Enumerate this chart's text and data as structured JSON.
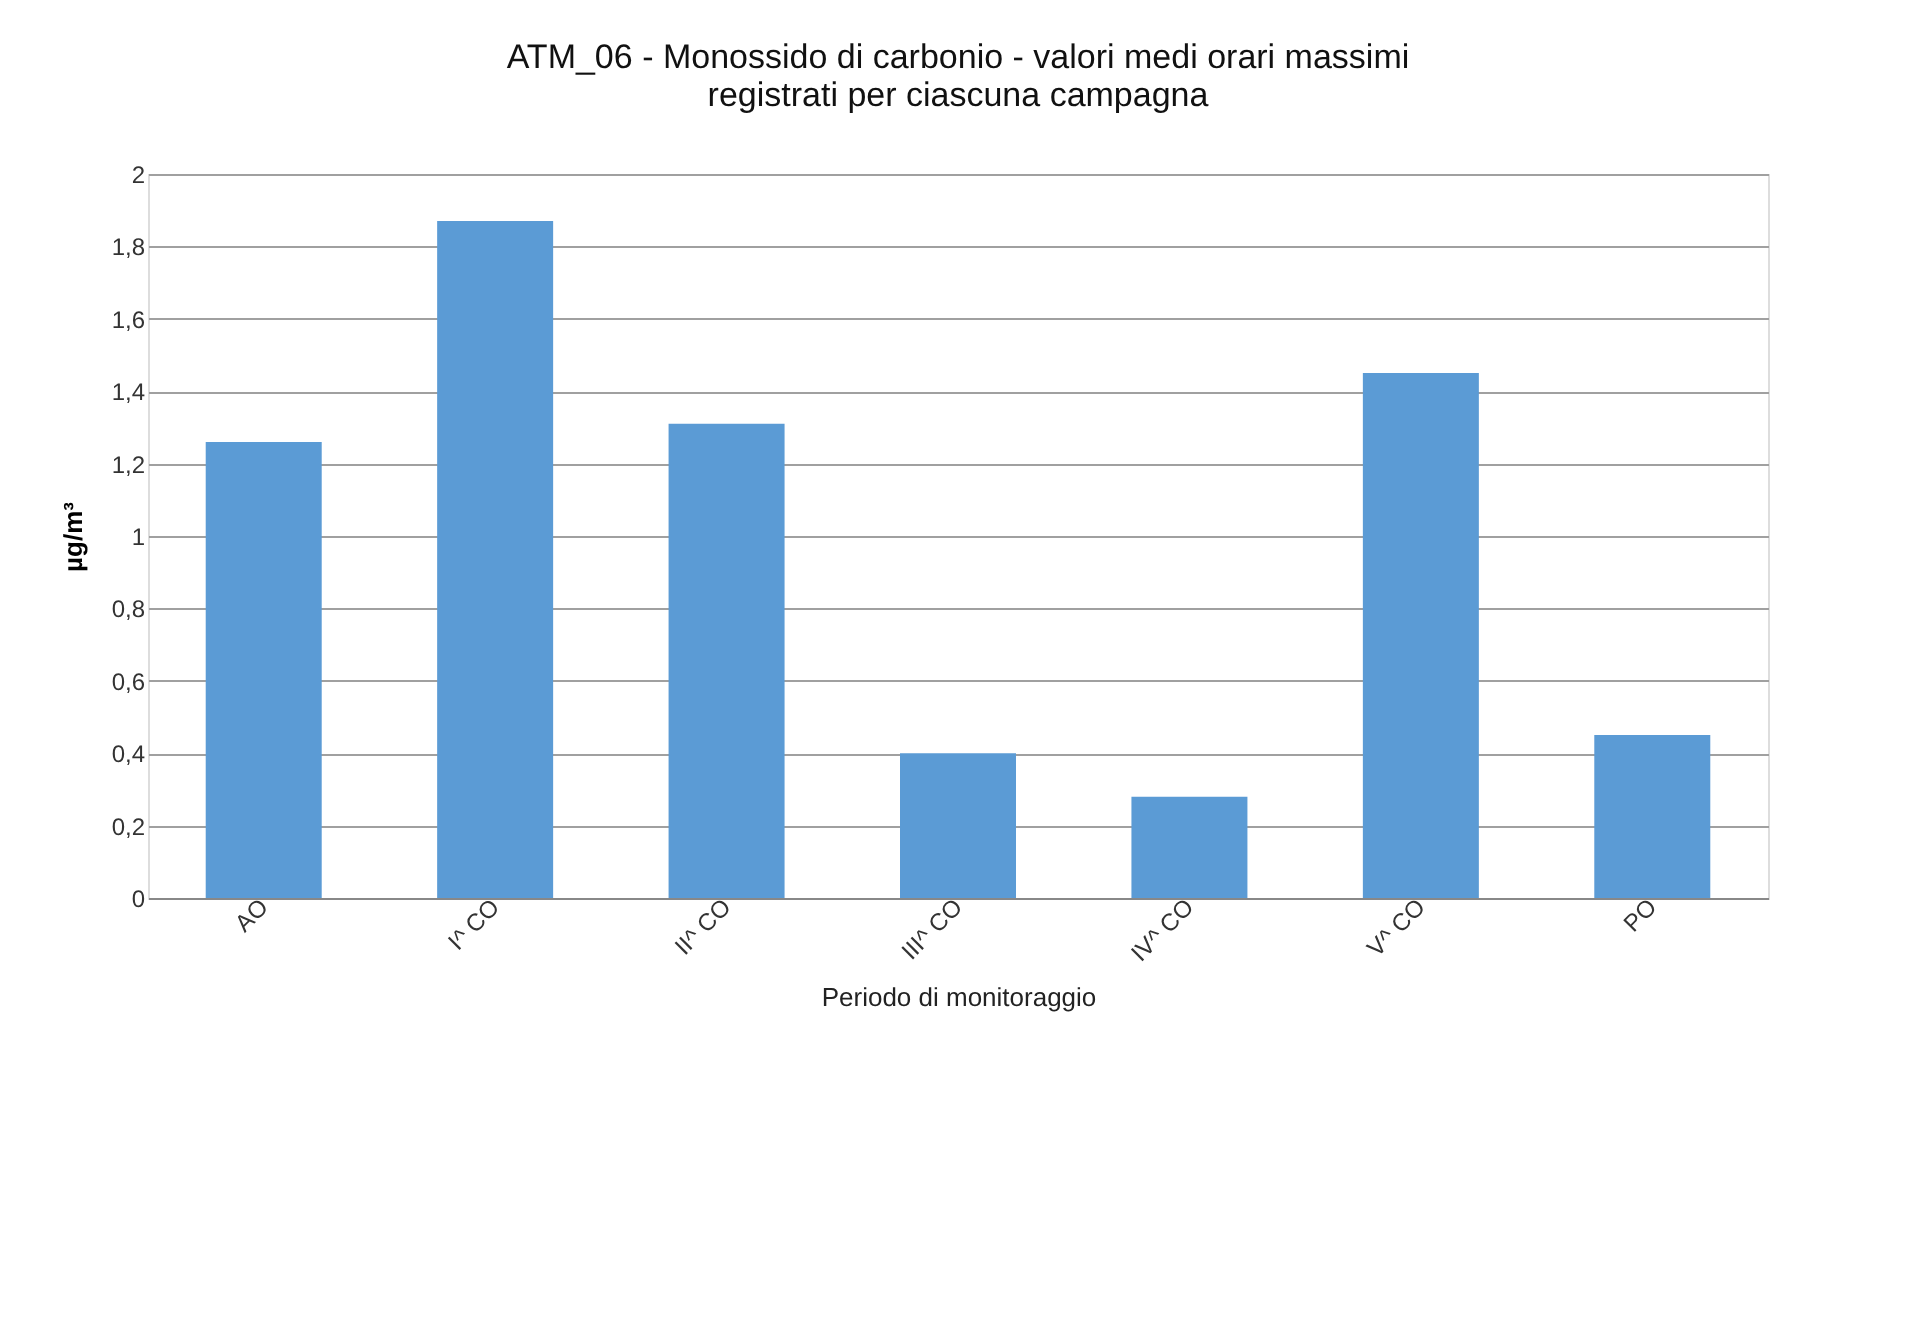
{
  "chart_data": {
    "type": "bar",
    "title": [
      "ATM_06 - Monossido di carbonio - valori medi orari massimi",
      "registrati per ciascuna campagna"
    ],
    "xlabel": "Periodo di  monitoraggio",
    "ylabel": "µg/m³",
    "categories": [
      "AO",
      "I^ CO",
      "II^ CO",
      "III^ CO",
      "IV^ CO",
      "V^ CO",
      "PO"
    ],
    "values": [
      1.26,
      1.87,
      1.31,
      0.4,
      0.28,
      1.45,
      0.45
    ],
    "color": "#5b9bd5",
    "ylim": [
      0,
      2
    ],
    "yticks": [
      0,
      {
        "value": 0.2,
        "label": "0,2"
      },
      {
        "value": 0.4,
        "label": "0,4"
      },
      {
        "value": 0.6,
        "label": "0,6"
      },
      {
        "value": 0.8,
        "label": "0,8"
      },
      1,
      {
        "value": 1.2,
        "label": "1,2"
      },
      {
        "value": 1.4,
        "label": "1,4"
      },
      {
        "value": 1.6,
        "label": "1,6"
      },
      {
        "value": 1.8,
        "label": "1,8"
      },
      2
    ],
    "grid": "y"
  }
}
